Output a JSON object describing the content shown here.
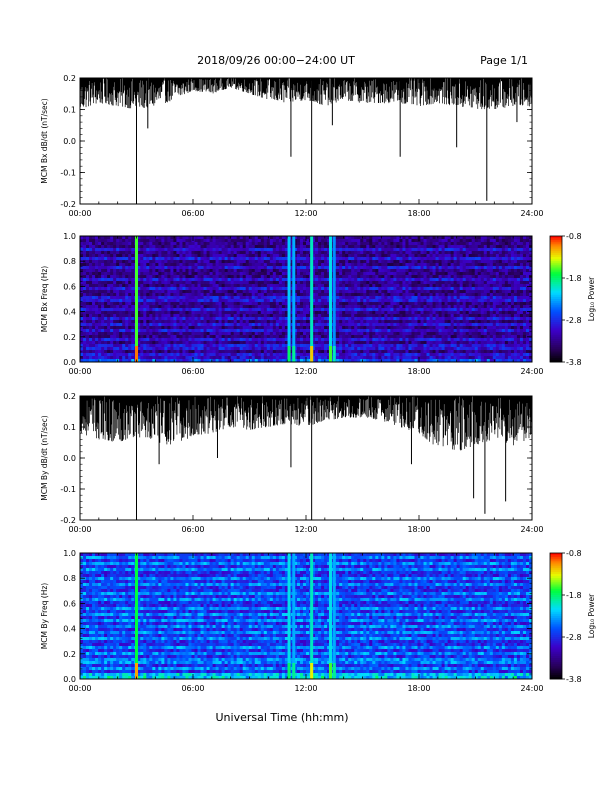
{
  "header": {
    "title": "2018/09/26  00:00−24:00 UT",
    "page": "Page 1/1"
  },
  "colors": {
    "trace": "#000000",
    "axes": "#000000",
    "background": "#ffffff"
  },
  "chart_data": [
    {
      "type": "line",
      "panel": "bx-ddt",
      "ylabel": "MCM Bx dB/dt (nT/sec)",
      "xlabel": "",
      "x_ticks": [
        "00:00",
        "06:00",
        "12:00",
        "18:00",
        "24:00"
      ],
      "xlim_hours": [
        0,
        24
      ],
      "ylim": [
        -0.2,
        0.2
      ],
      "y_ticks": [
        "0.2",
        "0.1",
        "0.0",
        "-0.1",
        "-0.2"
      ],
      "y_tick_values": [
        0.2,
        0.1,
        0.0,
        -0.1,
        -0.2
      ],
      "baseline_max": 0.2,
      "envelope": {
        "hours": [
          0,
          1,
          2,
          3,
          4,
          5,
          6,
          7,
          8,
          9,
          10,
          11,
          12,
          13,
          14,
          15,
          16,
          17,
          18,
          19,
          20,
          21,
          22,
          23,
          24
        ],
        "lower": [
          0.1,
          0.12,
          0.11,
          0.1,
          0.11,
          0.13,
          0.16,
          0.15,
          0.17,
          0.15,
          0.13,
          0.12,
          0.13,
          0.11,
          0.13,
          0.12,
          0.12,
          0.12,
          0.11,
          0.12,
          0.11,
          0.1,
          0.1,
          0.11,
          0.11
        ]
      },
      "spikes": [
        {
          "hour": 3.0,
          "value": -0.2
        },
        {
          "hour": 3.6,
          "value": 0.04
        },
        {
          "hour": 11.2,
          "value": -0.05
        },
        {
          "hour": 12.3,
          "value": -0.2
        },
        {
          "hour": 13.4,
          "value": 0.05
        },
        {
          "hour": 17.0,
          "value": -0.05
        },
        {
          "hour": 20.0,
          "value": -0.02
        },
        {
          "hour": 21.6,
          "value": -0.19
        },
        {
          "hour": 23.2,
          "value": 0.06
        }
      ]
    },
    {
      "type": "heatmap",
      "panel": "bx-spectrogram",
      "ylabel": "MCM Bx Freq (Hz)",
      "xlabel": "",
      "x_ticks": [
        "00:00",
        "06:00",
        "12:00",
        "18:00",
        "24:00"
      ],
      "xlim_hours": [
        0,
        24
      ],
      "ylim": [
        0.0,
        1.0
      ],
      "y_ticks": [
        "1.0",
        "0.8",
        "0.6",
        "0.4",
        "0.2",
        "0.0"
      ],
      "y_tick_values": [
        1.0,
        0.8,
        0.6,
        0.4,
        0.2,
        0.0
      ],
      "colorbar": {
        "label": "Log₁₀ Power",
        "ticks": [
          "-0.8",
          "-1.8",
          "-2.8",
          "-3.8"
        ],
        "tick_values": [
          -0.8,
          -1.8,
          -2.8,
          -3.8
        ],
        "range": [
          -3.8,
          -0.8
        ]
      },
      "background_level": -3.3,
      "events": [
        {
          "hour": 3.0,
          "level": -1.6,
          "peak": -1.0
        },
        {
          "hour": 11.1,
          "level": -2.2,
          "peak": -1.8
        },
        {
          "hour": 11.35,
          "level": -2.3,
          "peak": -1.9
        },
        {
          "hour": 12.3,
          "level": -2.0,
          "peak": -1.2
        },
        {
          "hour": 13.3,
          "level": -2.1,
          "peak": -1.6
        },
        {
          "hour": 13.5,
          "level": -2.4,
          "peak": -2.0
        }
      ],
      "harmonic_bands_hz": [
        0.06,
        0.1,
        0.14,
        0.19,
        0.25,
        0.3,
        0.35,
        0.42,
        0.5,
        0.58,
        0.66,
        0.74,
        0.82,
        0.9
      ]
    },
    {
      "type": "line",
      "panel": "by-ddt",
      "ylabel": "MCM By dB/dt (nT/sec)",
      "xlabel": "",
      "x_ticks": [
        "00:00",
        "06:00",
        "12:00",
        "18:00",
        "24:00"
      ],
      "xlim_hours": [
        0,
        24
      ],
      "ylim": [
        -0.2,
        0.2
      ],
      "y_ticks": [
        "0.2",
        "0.1",
        "0.0",
        "-0.1",
        "-0.2"
      ],
      "y_tick_values": [
        0.2,
        0.1,
        0.0,
        -0.1,
        -0.2
      ],
      "baseline_max": 0.2,
      "envelope": {
        "hours": [
          0,
          1,
          2,
          3,
          4,
          5,
          6,
          7,
          8,
          9,
          10,
          11,
          12,
          13,
          14,
          15,
          16,
          17,
          18,
          19,
          20,
          21,
          22,
          23,
          24
        ],
        "lower": [
          0.08,
          0.06,
          0.05,
          0.07,
          0.05,
          0.04,
          0.07,
          0.08,
          0.1,
          0.09,
          0.1,
          0.11,
          0.1,
          0.12,
          0.13,
          0.13,
          0.12,
          0.1,
          0.08,
          0.03,
          0.02,
          0.04,
          0.06,
          0.04,
          0.06
        ]
      },
      "spikes": [
        {
          "hour": 3.0,
          "value": -0.2
        },
        {
          "hour": 4.2,
          "value": -0.02
        },
        {
          "hour": 7.3,
          "value": 0.0
        },
        {
          "hour": 11.2,
          "value": -0.03
        },
        {
          "hour": 12.3,
          "value": -0.2
        },
        {
          "hour": 17.6,
          "value": -0.02
        },
        {
          "hour": 20.9,
          "value": -0.13
        },
        {
          "hour": 21.5,
          "value": -0.18
        },
        {
          "hour": 22.6,
          "value": -0.14
        }
      ]
    },
    {
      "type": "heatmap",
      "panel": "by-spectrogram",
      "ylabel": "MCM By Freq (Hz)",
      "xlabel": "Universal Time (hh:mm)",
      "x_ticks": [
        "00:00",
        "06:00",
        "12:00",
        "18:00",
        "24:00"
      ],
      "xlim_hours": [
        0,
        24
      ],
      "ylim": [
        0.0,
        1.0
      ],
      "y_ticks": [
        "1.0",
        "0.8",
        "0.6",
        "0.4",
        "0.2",
        "0.0"
      ],
      "y_tick_values": [
        1.0,
        0.8,
        0.6,
        0.4,
        0.2,
        0.0
      ],
      "colorbar": {
        "label": "Log₁₀ Power",
        "ticks": [
          "-0.8",
          "-1.8",
          "-2.8",
          "-3.8"
        ],
        "tick_values": [
          -0.8,
          -1.8,
          -2.8,
          -3.8
        ],
        "range": [
          -3.8,
          -0.8
        ]
      },
      "background_level": -2.8,
      "events": [
        {
          "hour": 3.0,
          "level": -1.7,
          "peak": -1.1
        },
        {
          "hour": 11.1,
          "level": -2.1,
          "peak": -1.8
        },
        {
          "hour": 11.35,
          "level": -2.3,
          "peak": -1.9
        },
        {
          "hour": 12.3,
          "level": -2.0,
          "peak": -1.3
        },
        {
          "hour": 13.3,
          "level": -2.1,
          "peak": -1.6
        },
        {
          "hour": 13.5,
          "level": -2.3,
          "peak": -1.9
        }
      ],
      "harmonic_bands_hz": [
        0.04,
        0.08,
        0.12,
        0.16,
        0.21,
        0.26,
        0.31,
        0.36,
        0.41,
        0.46,
        0.51,
        0.56,
        0.62,
        0.68,
        0.74,
        0.8,
        0.86,
        0.92,
        0.97
      ]
    }
  ]
}
